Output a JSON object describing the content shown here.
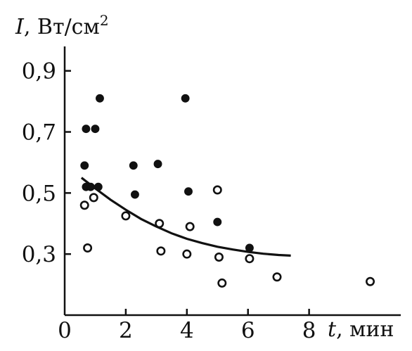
{
  "chart_data": {
    "type": "scatter",
    "title": "",
    "ylabel_var": "I",
    "ylabel_unit": ", Вт/см",
    "ylabel_unit_sup": "2",
    "xlabel_var": "t",
    "xlabel_unit": ", мин",
    "xlim": [
      0,
      11
    ],
    "ylim": [
      0.1,
      0.98
    ],
    "x_ticks": [
      {
        "value": 0,
        "label": "0"
      },
      {
        "value": 2,
        "label": "2"
      },
      {
        "value": 4,
        "label": "4"
      },
      {
        "value": 6,
        "label": "6"
      },
      {
        "value": 8,
        "label": "8"
      }
    ],
    "y_ticks": [
      {
        "value": 0.3,
        "label": "0,3"
      },
      {
        "value": 0.5,
        "label": "0,5"
      },
      {
        "value": 0.7,
        "label": "0,7"
      },
      {
        "value": 0.9,
        "label": "0,9"
      }
    ],
    "grid": false,
    "points": [
      {
        "x": 0.7,
        "y": 0.71,
        "filled": true
      },
      {
        "x": 1.0,
        "y": 0.71,
        "filled": true
      },
      {
        "x": 1.15,
        "y": 0.81,
        "filled": true
      },
      {
        "x": 0.65,
        "y": 0.59,
        "filled": true
      },
      {
        "x": 0.7,
        "y": 0.52,
        "filled": true
      },
      {
        "x": 0.85,
        "y": 0.52,
        "filled": true
      },
      {
        "x": 1.1,
        "y": 0.52,
        "filled": true
      },
      {
        "x": 0.65,
        "y": 0.46,
        "filled": false
      },
      {
        "x": 0.95,
        "y": 0.485,
        "filled": false
      },
      {
        "x": 0.75,
        "y": 0.32,
        "filled": false
      },
      {
        "x": 2.0,
        "y": 0.425,
        "filled": false
      },
      {
        "x": 2.25,
        "y": 0.59,
        "filled": true
      },
      {
        "x": 2.3,
        "y": 0.495,
        "filled": true
      },
      {
        "x": 3.05,
        "y": 0.595,
        "filled": true
      },
      {
        "x": 3.1,
        "y": 0.4,
        "filled": false
      },
      {
        "x": 3.15,
        "y": 0.31,
        "filled": false
      },
      {
        "x": 3.95,
        "y": 0.81,
        "filled": true
      },
      {
        "x": 4.05,
        "y": 0.505,
        "filled": true
      },
      {
        "x": 4.1,
        "y": 0.39,
        "filled": false
      },
      {
        "x": 4.0,
        "y": 0.3,
        "filled": false
      },
      {
        "x": 5.0,
        "y": 0.51,
        "filled": false
      },
      {
        "x": 5.0,
        "y": 0.405,
        "filled": true
      },
      {
        "x": 5.05,
        "y": 0.29,
        "filled": false
      },
      {
        "x": 5.15,
        "y": 0.205,
        "filled": false
      },
      {
        "x": 6.05,
        "y": 0.32,
        "filled": true
      },
      {
        "x": 6.05,
        "y": 0.285,
        "filled": false
      },
      {
        "x": 6.95,
        "y": 0.225,
        "filled": false
      },
      {
        "x": 10.0,
        "y": 0.21,
        "filled": false
      }
    ],
    "trend_line": {
      "x": [
        0.55,
        1.0,
        1.5,
        2.0,
        2.5,
        3.0,
        3.5,
        4.0,
        4.5,
        5.0,
        5.5,
        6.0,
        6.5,
        7.0,
        7.4
      ],
      "y": [
        0.55,
        0.515,
        0.478,
        0.445,
        0.415,
        0.39,
        0.368,
        0.35,
        0.336,
        0.324,
        0.315,
        0.307,
        0.301,
        0.297,
        0.295
      ]
    }
  }
}
